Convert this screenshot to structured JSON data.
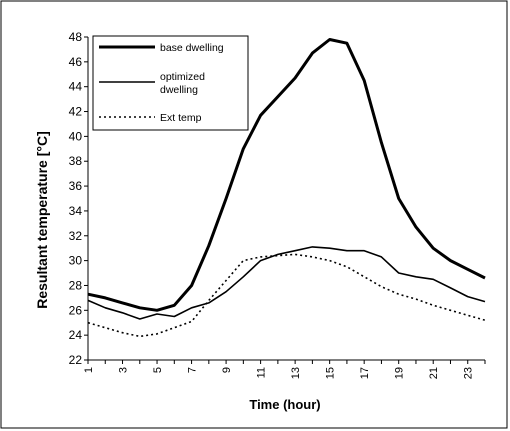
{
  "chart_data": {
    "type": "line",
    "title": "",
    "xlabel": "Time (hour)",
    "ylabel": "Resultant temperature [°C]",
    "x": [
      1,
      2,
      3,
      4,
      5,
      6,
      7,
      8,
      9,
      10,
      11,
      12,
      13,
      14,
      15,
      16,
      17,
      18,
      19,
      20,
      21,
      22,
      23,
      24
    ],
    "x_tick_labels": [
      "1",
      "3",
      "5",
      "7",
      "9",
      "11",
      "13",
      "15",
      "17",
      "19",
      "21",
      "23"
    ],
    "ylim": [
      22,
      48
    ],
    "y_ticks": [
      22,
      24,
      26,
      28,
      30,
      32,
      34,
      36,
      38,
      40,
      42,
      44,
      46,
      48
    ],
    "grid": false,
    "legend_placement": "top-left",
    "series": [
      {
        "name": "base dwelling",
        "style": "thick-solid",
        "values": [
          27.3,
          27.0,
          26.6,
          26.2,
          26.0,
          26.4,
          28.0,
          31.2,
          35.0,
          39.0,
          41.7,
          43.2,
          44.7,
          46.7,
          47.8,
          47.5,
          44.5,
          39.5,
          35.0,
          32.7,
          31.0,
          30.0,
          29.3,
          28.6
        ]
      },
      {
        "name": "optimized dwelling",
        "style": "thin-solid",
        "values": [
          26.8,
          26.2,
          25.8,
          25.3,
          25.7,
          25.5,
          26.2,
          26.6,
          27.5,
          28.7,
          30.0,
          30.5,
          30.8,
          31.1,
          31.0,
          30.8,
          30.8,
          30.3,
          29.0,
          28.7,
          28.5,
          27.8,
          27.1,
          26.7
        ]
      },
      {
        "name": "Ext temp",
        "style": "dotted",
        "values": [
          25.0,
          24.6,
          24.2,
          23.9,
          24.1,
          24.6,
          25.1,
          26.8,
          28.4,
          30.0,
          30.3,
          30.4,
          30.5,
          30.3,
          30.0,
          29.5,
          28.7,
          27.9,
          27.3,
          26.9,
          26.4,
          26.0,
          25.6,
          25.2
        ]
      }
    ]
  }
}
